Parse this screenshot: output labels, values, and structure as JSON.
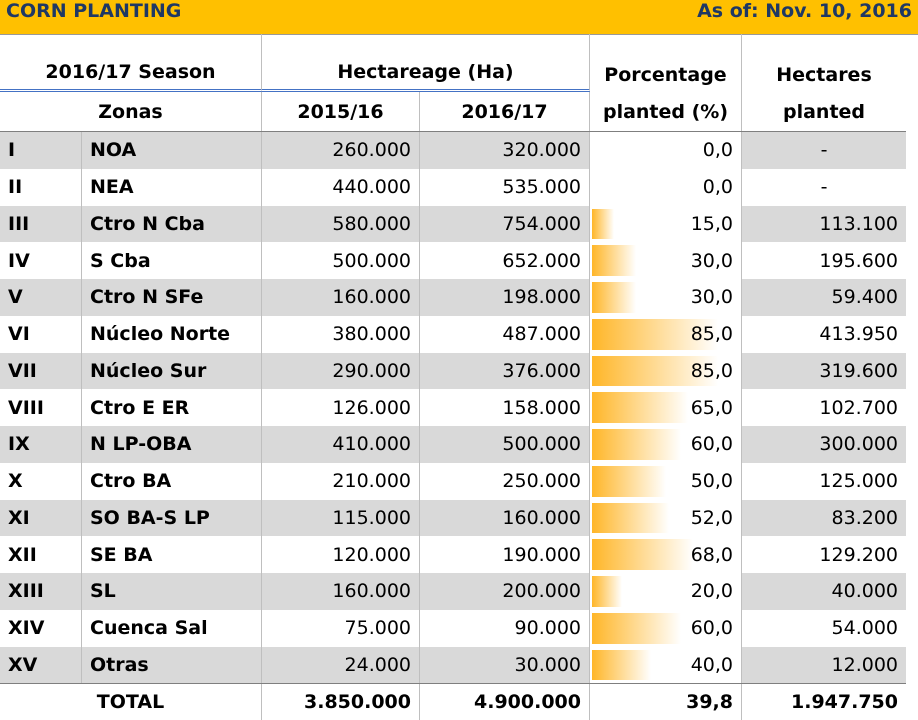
{
  "header": {
    "title": "CORN PLANTING",
    "date": "As of: Nov. 10, 2016"
  },
  "columns": {
    "group": [
      "2016/17 Season",
      "Hectareage (Ha)",
      "Porcentage",
      "Hectares"
    ],
    "sub": [
      "Zonas",
      "2015/16",
      "2016/17",
      "planted (%)",
      "planted"
    ]
  },
  "table": {
    "rows": [
      [
        "I",
        "NOA",
        "260.000",
        "320.000",
        "0,0",
        "-"
      ],
      [
        "II",
        "NEA",
        "440.000",
        "535.000",
        "0,0",
        "-"
      ],
      [
        "III",
        "Ctro N Cba",
        "580.000",
        "754.000",
        "15,0",
        "113.100"
      ],
      [
        "IV",
        "S Cba",
        "500.000",
        "652.000",
        "30,0",
        "195.600"
      ],
      [
        "V",
        "Ctro N SFe",
        "160.000",
        "198.000",
        "30,0",
        "59.400"
      ],
      [
        "VI",
        "Núcleo Norte",
        "380.000",
        "487.000",
        "85,0",
        "413.950"
      ],
      [
        "VII",
        "Núcleo Sur",
        "290.000",
        "376.000",
        "85,0",
        "319.600"
      ],
      [
        "VIII",
        "Ctro E ER",
        "126.000",
        "158.000",
        "65,0",
        "102.700"
      ],
      [
        "IX",
        "N LP-OBA",
        "410.000",
        "500.000",
        "60,0",
        "300.000"
      ],
      [
        "X",
        "Ctro BA",
        "210.000",
        "250.000",
        "50,0",
        "125.000"
      ],
      [
        "XI",
        "SO BA-S LP",
        "115.000",
        "160.000",
        "52,0",
        "83.200"
      ],
      [
        "XII",
        "SE BA",
        "120.000",
        "190.000",
        "68,0",
        "129.200"
      ],
      [
        "XIII",
        "SL",
        "160.000",
        "200.000",
        "20,0",
        "40.000"
      ],
      [
        "XIV",
        "Cuenca Sal",
        "75.000",
        "90.000",
        "60,0",
        "54.000"
      ],
      [
        "XV",
        "Otras",
        "24.000",
        "30.000",
        "40,0",
        "12.000"
      ]
    ],
    "total": [
      "TOTAL",
      "3.850.000",
      "4.900.000",
      "39,8",
      "1.947.750"
    ]
  }
}
